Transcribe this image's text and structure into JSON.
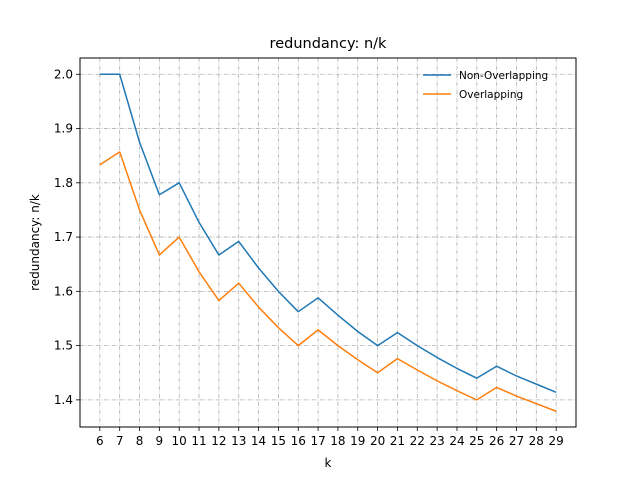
{
  "chart_data": {
    "type": "line",
    "title": "redundancy: n/k",
    "xlabel": "k",
    "ylabel": "redundancy: n/k",
    "x": [
      6,
      7,
      8,
      9,
      10,
      11,
      12,
      13,
      14,
      15,
      16,
      17,
      18,
      19,
      20,
      21,
      22,
      23,
      24,
      25,
      26,
      27,
      28,
      29
    ],
    "series": [
      {
        "name": "Non-Overlapping",
        "color": "#1f77b4",
        "values": [
          2.0,
          2.0,
          1.875,
          1.778,
          1.8,
          1.727,
          1.667,
          1.692,
          1.643,
          1.6,
          1.5625,
          1.588,
          1.556,
          1.526,
          1.5,
          1.524,
          1.5,
          1.478,
          1.458,
          1.44,
          1.462,
          1.444,
          1.429,
          1.414
        ]
      },
      {
        "name": "Overlapping",
        "color": "#ff7f0e",
        "values": [
          1.833,
          1.857,
          1.75,
          1.667,
          1.7,
          1.636,
          1.583,
          1.615,
          1.571,
          1.533,
          1.5,
          1.529,
          1.5,
          1.474,
          1.45,
          1.476,
          1.455,
          1.435,
          1.417,
          1.4,
          1.423,
          1.407,
          1.393,
          1.379
        ]
      }
    ],
    "yticks": [
      "1.4",
      "1.5",
      "1.6",
      "1.7",
      "1.8",
      "1.9",
      "2.0"
    ],
    "xlim": [
      5,
      30
    ],
    "ylim": [
      1.35,
      2.03
    ],
    "grid": true,
    "legend_position": "upper right"
  }
}
